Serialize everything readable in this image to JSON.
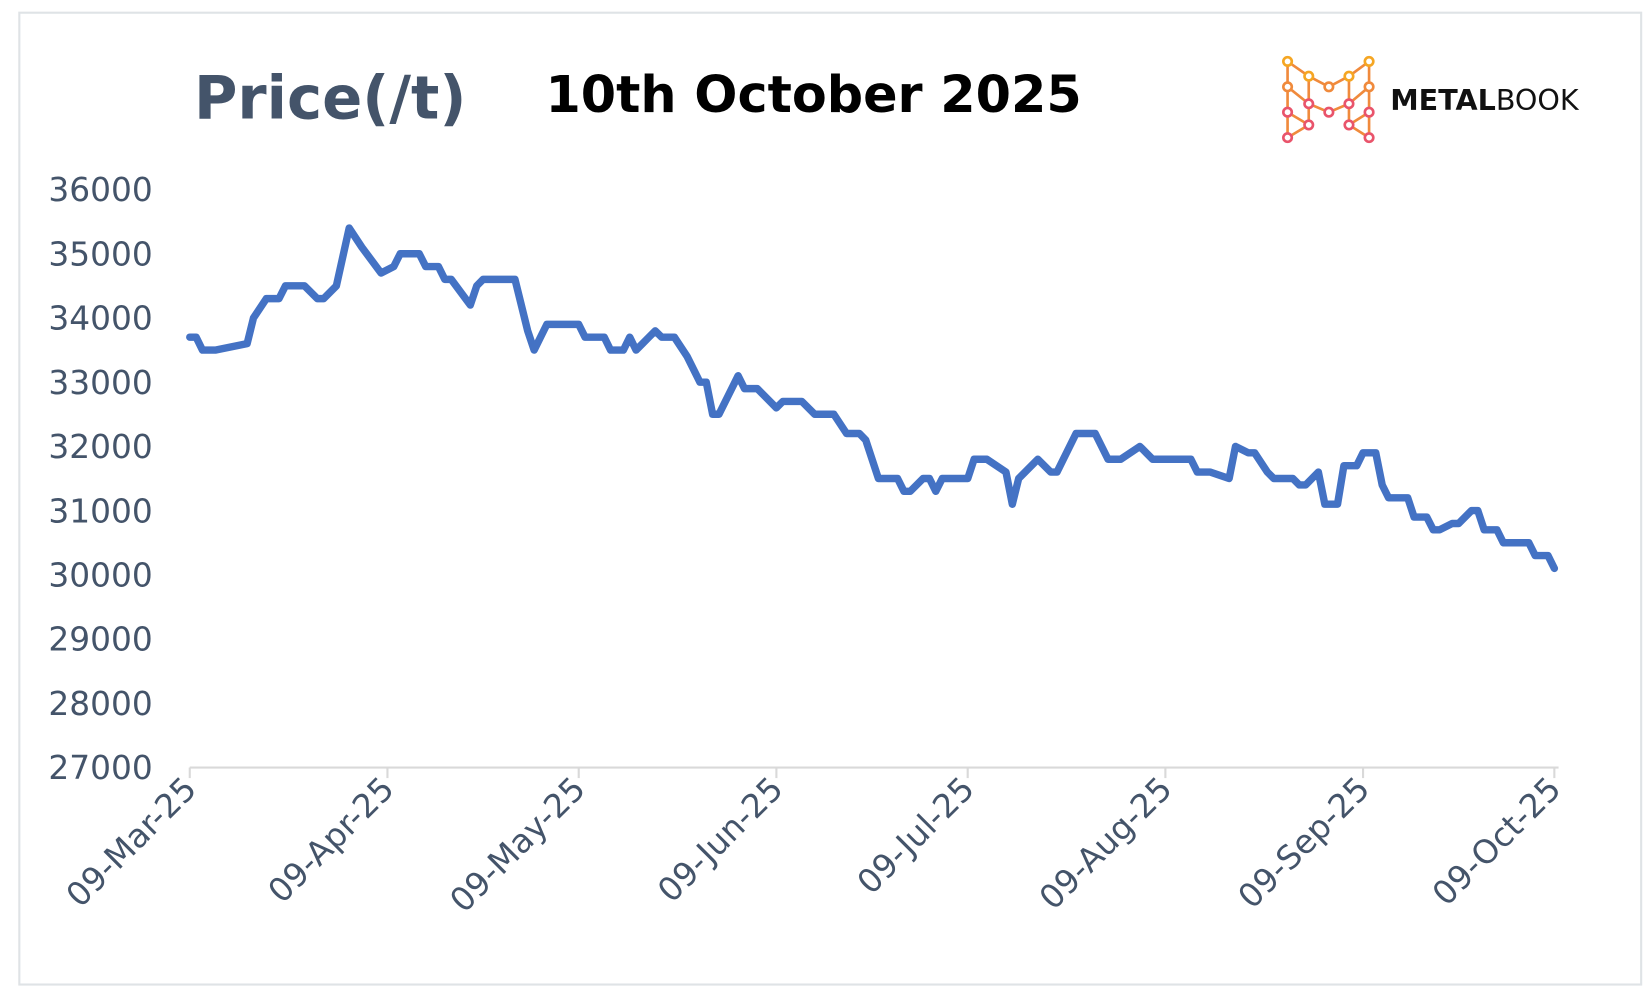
{
  "chart_data": {
    "type": "line",
    "title": "10th October 2025",
    "y_label": "Price(/t)",
    "x": [
      "2025-03-09",
      "2025-03-10",
      "2025-03-11",
      "2025-03-13",
      "2025-03-18",
      "2025-03-19",
      "2025-03-21",
      "2025-03-23",
      "2025-03-24",
      "2025-03-27",
      "2025-03-29",
      "2025-03-30",
      "2025-04-01",
      "2025-04-03",
      "2025-04-05",
      "2025-04-08",
      "2025-04-10",
      "2025-04-11",
      "2025-04-14",
      "2025-04-15",
      "2025-04-17",
      "2025-04-18",
      "2025-04-19",
      "2025-04-22",
      "2025-04-23",
      "2025-04-24",
      "2025-04-29",
      "2025-05-01",
      "2025-05-02",
      "2025-05-04",
      "2025-05-09",
      "2025-05-10",
      "2025-05-13",
      "2025-05-14",
      "2025-05-16",
      "2025-05-17",
      "2025-05-18",
      "2025-05-19",
      "2025-05-20",
      "2025-05-21",
      "2025-05-22",
      "2025-05-24",
      "2025-05-26",
      "2025-05-28",
      "2025-05-29",
      "2025-05-30",
      "2025-05-31",
      "2025-06-03",
      "2025-06-04",
      "2025-06-06",
      "2025-06-09",
      "2025-06-10",
      "2025-06-13",
      "2025-06-15",
      "2025-06-18",
      "2025-06-20",
      "2025-06-22",
      "2025-06-23",
      "2025-06-25",
      "2025-06-28",
      "2025-06-29",
      "2025-06-30",
      "2025-07-02",
      "2025-07-03",
      "2025-07-04",
      "2025-07-05",
      "2025-07-09",
      "2025-07-10",
      "2025-07-12",
      "2025-07-15",
      "2025-07-16",
      "2025-07-17",
      "2025-07-20",
      "2025-07-22",
      "2025-07-23",
      "2025-07-26",
      "2025-07-29",
      "2025-07-31",
      "2025-08-02",
      "2025-08-05",
      "2025-08-07",
      "2025-08-13",
      "2025-08-14",
      "2025-08-16",
      "2025-08-19",
      "2025-08-20",
      "2025-08-22",
      "2025-08-23",
      "2025-08-25",
      "2025-08-26",
      "2025-08-29",
      "2025-08-30",
      "2025-08-31",
      "2025-09-02",
      "2025-09-03",
      "2025-09-05",
      "2025-09-06",
      "2025-09-08",
      "2025-09-09",
      "2025-09-11",
      "2025-09-12",
      "2025-09-13",
      "2025-09-16",
      "2025-09-17",
      "2025-09-19",
      "2025-09-20",
      "2025-09-21",
      "2025-09-23",
      "2025-09-24",
      "2025-09-26",
      "2025-09-27",
      "2025-09-28",
      "2025-09-30",
      "2025-10-01",
      "2025-10-05",
      "2025-10-06",
      "2025-10-08",
      "2025-10-09"
    ],
    "series": [
      {
        "name": "Price",
        "color": "#4472c4",
        "values": [
          33700,
          33700,
          33500,
          33500,
          33600,
          34000,
          34300,
          34300,
          34500,
          34500,
          34300,
          34300,
          34500,
          35400,
          35100,
          34700,
          34800,
          35000,
          35000,
          34800,
          34800,
          34600,
          34600,
          34200,
          34500,
          34600,
          34600,
          33800,
          33500,
          33900,
          33900,
          33700,
          33700,
          33500,
          33500,
          33700,
          33500,
          33600,
          33700,
          33800,
          33700,
          33700,
          33400,
          33000,
          33000,
          32500,
          32500,
          33100,
          32900,
          32900,
          32600,
          32700,
          32700,
          32500,
          32500,
          32200,
          32200,
          32100,
          31500,
          31500,
          31300,
          31300,
          31500,
          31500,
          31300,
          31500,
          31500,
          31800,
          31800,
          31600,
          31100,
          31500,
          31800,
          31600,
          31600,
          32200,
          32200,
          31800,
          31800,
          32000,
          31800,
          31800,
          31600,
          31600,
          31500,
          32000,
          31900,
          31900,
          31600,
          31500,
          31500,
          31400,
          31400,
          31600,
          31100,
          31100,
          31700,
          31700,
          31900,
          31900,
          31400,
          31200,
          31200,
          30900,
          30900,
          30700,
          30700,
          30800,
          30800,
          31000,
          31000,
          30700,
          30700,
          30500,
          30500,
          30300,
          30300,
          30100
        ]
      }
    ],
    "xlim": [
      "2025-03-09",
      "2025-10-09"
    ],
    "xticks": [
      {
        "value": "2025-03-09",
        "label": "09-Mar-25"
      },
      {
        "value": "2025-04-09",
        "label": "09-Apr-25"
      },
      {
        "value": "2025-05-09",
        "label": "09-May-25"
      },
      {
        "value": "2025-06-09",
        "label": "09-Jun-25"
      },
      {
        "value": "2025-07-09",
        "label": "09-Jul-25"
      },
      {
        "value": "2025-08-09",
        "label": "09-Aug-25"
      },
      {
        "value": "2025-09-09",
        "label": "09-Sep-25"
      },
      {
        "value": "2025-10-09",
        "label": "09-Oct-25"
      }
    ],
    "ylim": [
      27000,
      36000
    ],
    "yticks": [
      27000,
      28000,
      29000,
      30000,
      31000,
      32000,
      33000,
      34000,
      35000,
      36000
    ],
    "grid": false
  },
  "logo": {
    "parts": [
      "METAL",
      "BOOK"
    ]
  }
}
